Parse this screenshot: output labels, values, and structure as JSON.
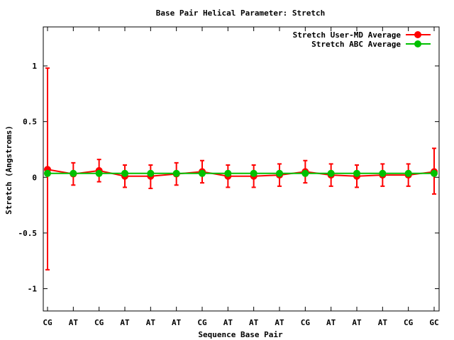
{
  "chart_data": {
    "type": "line",
    "title": "Base Pair Helical Parameter: Stretch",
    "xlabel": "Sequence Base Pair",
    "ylabel": "Stretch (Angstroms)",
    "categories": [
      "CG",
      "AT",
      "CG",
      "AT",
      "AT",
      "AT",
      "CG",
      "AT",
      "AT",
      "AT",
      "CG",
      "AT",
      "AT",
      "AT",
      "CG",
      "GC"
    ],
    "ylim": [
      -1.2,
      1.35
    ],
    "yticks": [
      {
        "value": 1,
        "label": "1"
      },
      {
        "value": 0.5,
        "label": "0.5"
      },
      {
        "value": 0,
        "label": "0"
      },
      {
        "value": -0.5,
        "label": "-0.5"
      },
      {
        "value": -1,
        "label": "-1"
      }
    ],
    "grid": false,
    "legend_position": "top-right",
    "series": [
      {
        "name": "Stretch User-MD Average",
        "color": "#ff0000",
        "values": [
          0.07,
          0.03,
          0.06,
          0.01,
          0.01,
          0.03,
          0.05,
          0.01,
          0.01,
          0.02,
          0.05,
          0.02,
          0.01,
          0.02,
          0.02,
          0.05
        ],
        "error_low": [
          -0.83,
          -0.07,
          -0.04,
          -0.09,
          -0.1,
          -0.07,
          -0.05,
          -0.09,
          -0.09,
          -0.08,
          -0.05,
          -0.08,
          -0.09,
          -0.08,
          -0.08,
          -0.15
        ],
        "error_high": [
          0.98,
          0.13,
          0.16,
          0.11,
          0.11,
          0.13,
          0.15,
          0.11,
          0.11,
          0.12,
          0.15,
          0.12,
          0.11,
          0.12,
          0.12,
          0.26
        ]
      },
      {
        "name": "Stretch ABC Average",
        "color": "#00c000",
        "values": [
          0.035,
          0.035,
          0.035,
          0.035,
          0.035,
          0.035,
          0.035,
          0.035,
          0.035,
          0.035,
          0.035,
          0.035,
          0.035,
          0.035,
          0.035,
          0.035
        ]
      }
    ]
  }
}
